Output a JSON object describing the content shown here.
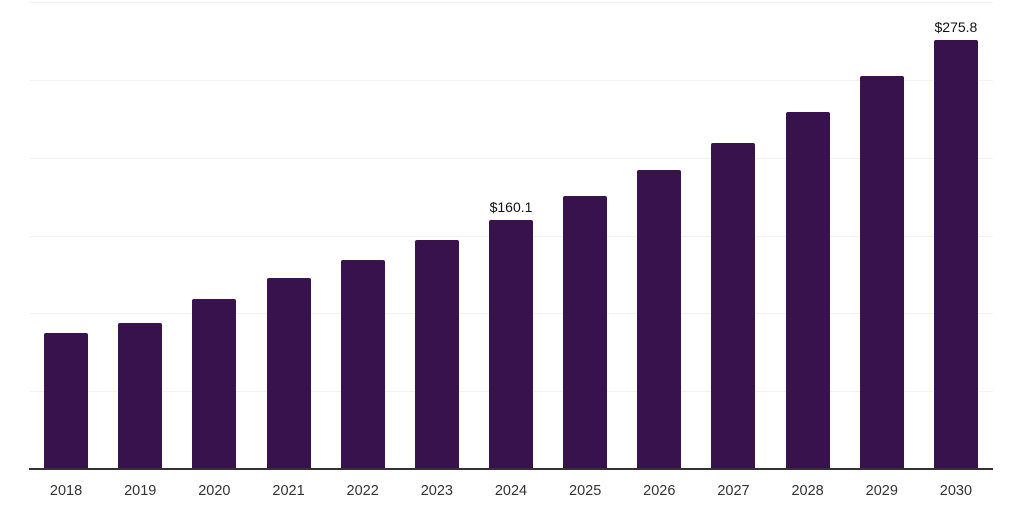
{
  "chart_data": {
    "type": "bar",
    "categories": [
      "2018",
      "2019",
      "2020",
      "2021",
      "2022",
      "2023",
      "2024",
      "2025",
      "2026",
      "2027",
      "2028",
      "2029",
      "2030"
    ],
    "values": [
      87.5,
      93.5,
      109.5,
      122.8,
      134.5,
      147.3,
      160.1,
      175.4,
      191.8,
      209.3,
      229.5,
      252.3,
      275.8
    ],
    "data_labels": [
      null,
      null,
      null,
      null,
      null,
      null,
      "$160.1",
      null,
      null,
      null,
      null,
      null,
      "$275.8"
    ],
    "title": "",
    "xlabel": "",
    "ylabel": "",
    "ylim": [
      0,
      300
    ],
    "grid_step": 50,
    "grid": true,
    "legend": false,
    "colors": {
      "bar": "#38124C",
      "gridline": "#F2F2F2",
      "axis_line": "#333333",
      "tick_label": "#333333",
      "data_label": "#111111",
      "background": "#FFFFFF"
    }
  }
}
